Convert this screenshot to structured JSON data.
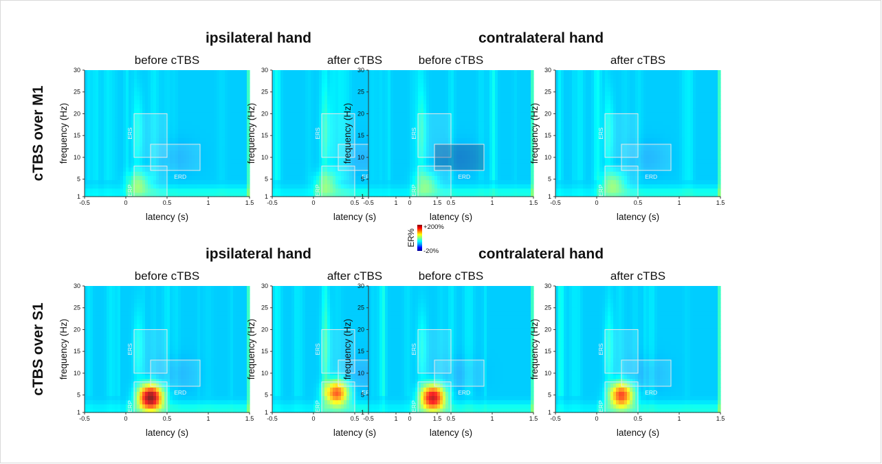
{
  "chart_data": {
    "type": "heatmap",
    "colorbar": {
      "label": "ER%",
      "max_label": "+200%",
      "min_label": "-20%",
      "max": 200,
      "min": -20,
      "colormap": "jet",
      "colors": [
        "#00008f",
        "#0000ff",
        "#00a0ff",
        "#00ffff",
        "#80ff80",
        "#ffff00",
        "#ff8000",
        "#ff0000",
        "#800000"
      ]
    },
    "x": {
      "label": "latency (s)",
      "range": [
        -0.5,
        1.5
      ],
      "ticks": [
        -0.5,
        0,
        0.5,
        1,
        1.5
      ],
      "tick_labels": [
        "-0.5",
        "0",
        "0.5",
        "1",
        "1.5"
      ]
    },
    "y": {
      "label": "frequency (Hz)",
      "range": [
        1,
        30
      ],
      "ticks": [
        1,
        5,
        10,
        15,
        20,
        25,
        30
      ],
      "tick_labels": [
        "1",
        "5",
        "10",
        "15",
        "20",
        "25",
        "30"
      ]
    },
    "roi_boxes": [
      {
        "label": "ERS",
        "x": [
          0.1,
          0.5
        ],
        "y": [
          10,
          20
        ]
      },
      {
        "label": "ERD",
        "x": [
          0.3,
          0.9
        ],
        "y": [
          7,
          13
        ]
      },
      {
        "label": "ERP",
        "x": [
          0.1,
          0.5
        ],
        "y": [
          1,
          8
        ]
      }
    ],
    "rows": [
      {
        "label": "cTBS over M1",
        "groups": [
          {
            "title": "ipsilateral hand",
            "panels": [
              {
                "title": "before cTBS",
                "peak_er": 35,
                "peak_latency": 0.15,
                "peak_frequency": 4
              },
              {
                "title": "after cTBS",
                "peak_er": 30,
                "peak_latency": 0.15,
                "peak_frequency": 4
              }
            ]
          },
          {
            "title": "contralateral hand",
            "panels": [
              {
                "title": "before cTBS",
                "peak_er": 30,
                "peak_latency": 0.2,
                "peak_frequency": 4
              },
              {
                "title": "after cTBS",
                "peak_er": 35,
                "peak_latency": 0.2,
                "peak_frequency": 4
              }
            ]
          }
        ]
      },
      {
        "label": "cTBS over S1",
        "groups": [
          {
            "title": "ipsilateral hand",
            "panels": [
              {
                "title": "before cTBS",
                "peak_er": 200,
                "peak_latency": 0.3,
                "peak_frequency": 4.5
              },
              {
                "title": "after cTBS",
                "peak_er": 120,
                "peak_latency": 0.28,
                "peak_frequency": 5.5
              }
            ]
          },
          {
            "title": "contralateral hand",
            "panels": [
              {
                "title": "before cTBS",
                "peak_er": 170,
                "peak_latency": 0.28,
                "peak_frequency": 4.5
              },
              {
                "title": "after cTBS",
                "peak_er": 130,
                "peak_latency": 0.3,
                "peak_frequency": 5
              }
            ]
          }
        ]
      }
    ]
  }
}
